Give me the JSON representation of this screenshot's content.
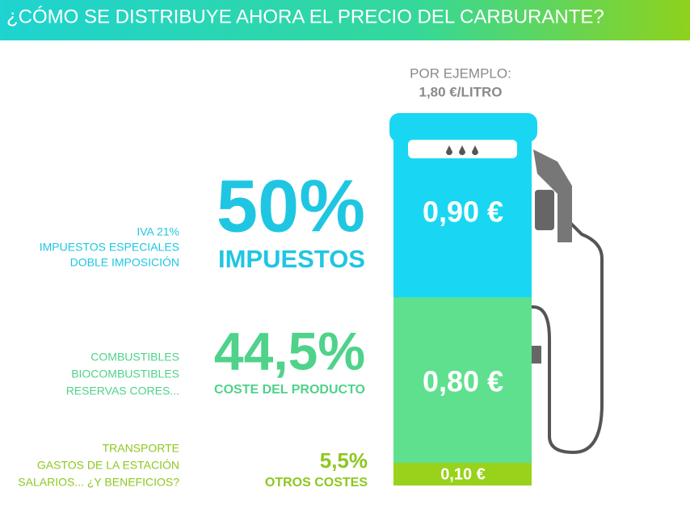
{
  "header": {
    "title": "¿CÓMO SE DISTRIBUYE AHORA EL PRECIO DEL CARBURANTE?"
  },
  "example": {
    "label": "POR EJEMPLO:",
    "price": "1,80 €/LITRO"
  },
  "segments": [
    {
      "percent": "50%",
      "name": "IMPUESTOS",
      "details": [
        "IVA 21%",
        "IMPUESTOS ESPECIALES",
        "DOBLE IMPOSICIÓN"
      ],
      "amount": "0,90 €"
    },
    {
      "percent": "44,5%",
      "name": "COSTE DEL PRODUCTO",
      "details": [
        "COMBUSTIBLES",
        "BIOCOMBUSTIBLES",
        "RESERVAS CORES..."
      ],
      "amount": "0,80 €"
    },
    {
      "percent": "5,5%",
      "name": "OTROS COSTES",
      "details": [
        "TRANSPORTE",
        "GASTOS DE LA ESTACIÓN",
        "SALARIOS... ¿Y BENEFICIOS?"
      ],
      "amount": "0,10 €"
    }
  ]
}
